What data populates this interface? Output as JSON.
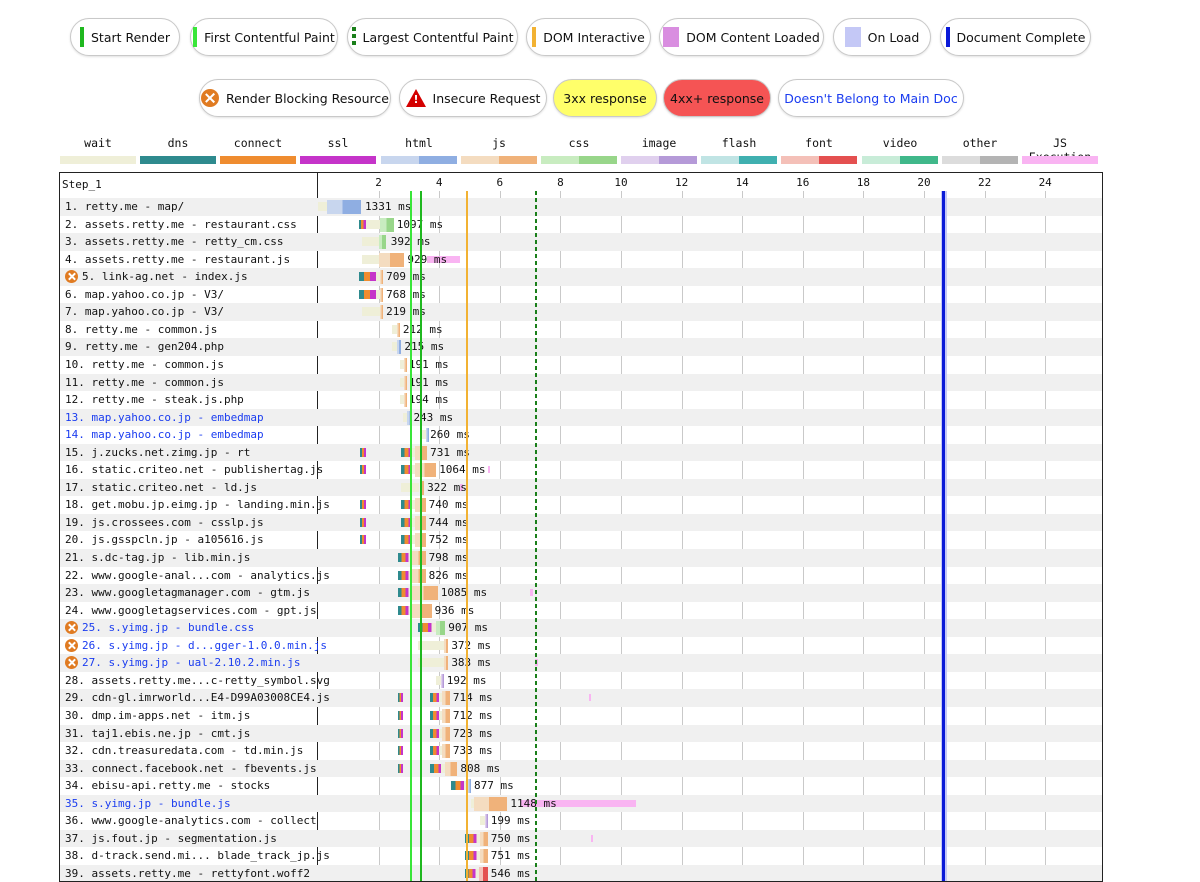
{
  "legend_events": [
    {
      "label": "Start Render",
      "style": "line",
      "color": "#1fb81f",
      "left": 70,
      "width": 110
    },
    {
      "label": "First Contentful Paint",
      "style": "line",
      "color": "#39e639",
      "left": 190,
      "width": 148
    },
    {
      "label": "Largest Contentful Paint",
      "style": "dash",
      "color": "#1a7f1a",
      "left": 347,
      "width": 171
    },
    {
      "label": "DOM Interactive",
      "style": "line",
      "color": "#f2b233",
      "left": 526,
      "width": 125
    },
    {
      "label": "DOM Content Loaded",
      "style": "box",
      "color": "#d98ee0",
      "left": 659,
      "width": 165
    },
    {
      "label": "On Load",
      "style": "box",
      "color": "#c4c8f6",
      "left": 833,
      "width": 98
    },
    {
      "label": "Document Complete",
      "style": "line",
      "color": "#0a1ad8",
      "left": 940,
      "width": 151
    }
  ],
  "legend_flags": [
    {
      "label": "Render Blocking Resource",
      "icon": "render-blocking-icon",
      "bg": "#ffffff",
      "color": "#111111",
      "left": 199,
      "width": 192
    },
    {
      "label": "Insecure Request",
      "icon": "warning-icon",
      "bg": "#ffffff",
      "color": "#111111",
      "left": 399,
      "width": 148
    },
    {
      "label": "3xx response",
      "icon": "",
      "bg": "#ffff6a",
      "color": "#111111",
      "left": 553,
      "width": 104
    },
    {
      "label": "4xx+ response",
      "icon": "",
      "bg": "#f55454",
      "color": "#111111",
      "left": 663,
      "width": 108
    },
    {
      "label": "Doesn't Belong to Main Doc",
      "icon": "",
      "bg": "#ffffff",
      "color": "#1a3cf0",
      "left": 778,
      "width": 186
    }
  ],
  "content_types": [
    {
      "label": "wait",
      "c1": "#efefd8",
      "c2": "#efefd8",
      "left": 60
    },
    {
      "label": "dns",
      "c1": "#2e8a8e",
      "c2": "#2e8a8e",
      "left": 140
    },
    {
      "label": "connect",
      "c1": "#ef8c2f",
      "c2": "#ef8c2f",
      "left": 220
    },
    {
      "label": "ssl",
      "c1": "#c534c9",
      "c2": "#c534c9",
      "left": 300
    },
    {
      "label": "html",
      "c1": "#c8d6ee",
      "c2": "#8faee2",
      "left": 381
    },
    {
      "label": "js",
      "c1": "#f4dcc0",
      "c2": "#f0b27a",
      "left": 461
    },
    {
      "label": "css",
      "c1": "#c8ecc0",
      "c2": "#98d68a",
      "left": 541
    },
    {
      "label": "image",
      "c1": "#e0d0ee",
      "c2": "#b59ad8",
      "left": 621
    },
    {
      "label": "flash",
      "c1": "#c0e4e4",
      "c2": "#40b0b0",
      "left": 701
    },
    {
      "label": "font",
      "c1": "#f4c0b8",
      "c2": "#e45050",
      "left": 781
    },
    {
      "label": "video",
      "c1": "#c8ecd8",
      "c2": "#40b88a",
      "left": 862
    },
    {
      "label": "other",
      "c1": "#dcdcdc",
      "c2": "#b4b4b4",
      "left": 942
    },
    {
      "label": "JS Execution",
      "c1": "#f9b4f2",
      "c2": "#f9b4f2",
      "left": 1022
    }
  ],
  "waterfall": {
    "step": "Step_1",
    "ticks": [
      "2",
      "4",
      "6",
      "8",
      "10",
      "12",
      "14",
      "16",
      "18",
      "20",
      "22",
      "24"
    ],
    "requests": [
      {
        "label": "1. retty.me - map/",
        "ms": "1331 ms",
        "blue": false,
        "rb": false,
        "type": "html",
        "wait": [
          0.0,
          0.3
        ],
        "dl": [
          0.3,
          1.43
        ],
        "msx": 1.55
      },
      {
        "label": "2. assets.retty.me - restaurant.css",
        "ms": "1097 ms",
        "blue": false,
        "rb": false,
        "type": "css",
        "dns": [
          1.35,
          1.6
        ],
        "wait": [
          1.6,
          2.05
        ],
        "dl": [
          2.05,
          2.5
        ],
        "msx": 2.6
      },
      {
        "label": "3. assets.retty.me - retty_cm.css",
        "ms": "392 ms",
        "blue": false,
        "rb": false,
        "type": "css",
        "wait": [
          1.45,
          2.0
        ],
        "dl": [
          2.0,
          2.25
        ],
        "msx": 2.4
      },
      {
        "label": "4. assets.retty.me - restaurant.js",
        "ms": "929 ms",
        "blue": false,
        "rb": false,
        "type": "js",
        "wait": [
          1.45,
          2.0
        ],
        "dl": [
          2.0,
          2.85
        ],
        "msx": 2.95,
        "jsx": [
          3.6,
          4.7
        ]
      },
      {
        "label": "5. link-ag.net - index.js",
        "ms": "709 ms",
        "blue": false,
        "rb": true,
        "type": "js",
        "dns": [
          1.35,
          1.9
        ],
        "wait": [
          1.9,
          2.05
        ],
        "dl": [
          2.05,
          2.15
        ],
        "msx": 2.25
      },
      {
        "label": "6. map.yahoo.co.jp - V3/",
        "ms": "768 ms",
        "blue": false,
        "rb": false,
        "type": "js",
        "dns": [
          1.35,
          1.9
        ],
        "wait": [
          1.9,
          2.05
        ],
        "dl": [
          2.05,
          2.15
        ],
        "msx": 2.25
      },
      {
        "label": "7. map.yahoo.co.jp - V3/",
        "ms": "219 ms",
        "blue": false,
        "rb": false,
        "type": "js",
        "wait": [
          1.45,
          2.05
        ],
        "dl": [
          2.05,
          2.15
        ],
        "msx": 2.25
      },
      {
        "label": "8. retty.me - common.js",
        "ms": "212 ms",
        "blue": false,
        "rb": false,
        "type": "js",
        "wait": [
          2.45,
          2.62
        ],
        "dl": [
          2.62,
          2.7
        ],
        "msx": 2.8
      },
      {
        "label": "9. retty.me - gen204.php",
        "ms": "215 ms",
        "blue": false,
        "rb": false,
        "type": "html",
        "wait": [
          2.45,
          2.62
        ],
        "dl": [
          2.62,
          2.75
        ],
        "msx": 2.85
      },
      {
        "label": "10. retty.me - common.js",
        "ms": "191 ms",
        "blue": false,
        "rb": false,
        "type": "js",
        "wait": [
          2.7,
          2.85
        ],
        "dl": [
          2.85,
          2.95
        ],
        "msx": 3.0
      },
      {
        "label": "11. retty.me - common.js",
        "ms": "191 ms",
        "blue": false,
        "rb": false,
        "type": "js",
        "wait": [
          2.7,
          2.85
        ],
        "dl": [
          2.85,
          2.95
        ],
        "msx": 3.0
      },
      {
        "label": "12. retty.me - steak.js.php",
        "ms": "194 ms",
        "blue": false,
        "rb": false,
        "type": "js",
        "wait": [
          2.7,
          2.85
        ],
        "dl": [
          2.85,
          2.95
        ],
        "msx": 3.0
      },
      {
        "label": "13. map.yahoo.co.jp - embedmap",
        "ms": "243 ms",
        "blue": true,
        "rb": false,
        "type": "html",
        "wait": [
          2.8,
          2.95
        ],
        "dl": [
          2.95,
          3.1
        ],
        "msx": 3.15
      },
      {
        "label": "14. map.yahoo.co.jp - embedmap",
        "ms": "260 ms",
        "blue": true,
        "rb": false,
        "type": "html",
        "wait": [
          3.35,
          3.55
        ],
        "dl": [
          3.55,
          3.65
        ],
        "msx": 3.7
      },
      {
        "label": "15. j.zucks.net.zimg.jp - rt",
        "ms": "731 ms",
        "blue": false,
        "rb": false,
        "type": "js",
        "dns": [
          1.4,
          1.6
        ],
        "conn": [
          2.75,
          3.2
        ],
        "dl": [
          3.2,
          3.6
        ],
        "msx": 3.7
      },
      {
        "label": "16. static.criteo.net - publishertag.js",
        "ms": "1064 ms",
        "blue": false,
        "rb": false,
        "type": "js",
        "dns": [
          1.4,
          1.6
        ],
        "conn": [
          2.75,
          3.2
        ],
        "dl": [
          3.2,
          3.9
        ],
        "msx": 4.0,
        "jsx": [
          5.6,
          5.65
        ]
      },
      {
        "label": "17. static.criteo.net - ld.js",
        "ms": "322 ms",
        "blue": false,
        "rb": false,
        "type": "js",
        "wait": [
          2.75,
          3.35
        ],
        "dl": [
          3.35,
          3.5
        ],
        "msx": 3.6,
        "jsx": [
          4.7,
          4.8
        ]
      },
      {
        "label": "18. get.mobu.jp.eimg.jp - landing.min.js",
        "ms": "740 ms",
        "blue": false,
        "rb": false,
        "type": "js",
        "dns": [
          1.4,
          1.6
        ],
        "conn": [
          2.75,
          3.2
        ],
        "dl": [
          3.2,
          3.55
        ],
        "msx": 3.65
      },
      {
        "label": "19. js.crossees.com - csslp.js",
        "ms": "744 ms",
        "blue": false,
        "rb": false,
        "type": "js",
        "dns": [
          1.4,
          1.6
        ],
        "conn": [
          2.75,
          3.2
        ],
        "dl": [
          3.2,
          3.55
        ],
        "msx": 3.65
      },
      {
        "label": "20. js.gsspcln.jp - a105616.js",
        "ms": "752 ms",
        "blue": false,
        "rb": false,
        "type": "js",
        "dns": [
          1.4,
          1.6
        ],
        "conn": [
          2.75,
          3.2
        ],
        "dl": [
          3.2,
          3.55
        ],
        "msx": 3.65
      },
      {
        "label": "21. s.dc-tag.jp - lib.min.js",
        "ms": "798 ms",
        "blue": false,
        "rb": false,
        "type": "js",
        "conn": [
          2.65,
          3.1
        ],
        "dl": [
          3.1,
          3.55
        ],
        "msx": 3.65
      },
      {
        "label": "22. www.google-anal...com - analytics.js",
        "ms": "826 ms",
        "blue": false,
        "rb": false,
        "type": "js",
        "conn": [
          2.65,
          3.1
        ],
        "dl": [
          3.1,
          3.55
        ],
        "msx": 3.65
      },
      {
        "label": "23. www.googletagmanager.com - gtm.js",
        "ms": "1085 ms",
        "blue": false,
        "rb": false,
        "type": "js",
        "conn": [
          2.65,
          3.1
        ],
        "dl": [
          3.1,
          3.95
        ],
        "msx": 4.05,
        "jsx": [
          7.0,
          7.1
        ]
      },
      {
        "label": "24. www.googletagservices.com - gpt.js",
        "ms": "936 ms",
        "blue": false,
        "rb": false,
        "type": "js",
        "conn": [
          2.65,
          3.1
        ],
        "dl": [
          3.1,
          3.75
        ],
        "msx": 3.85
      },
      {
        "label": "25. s.yimg.jp - bundle.css",
        "ms": "907 ms",
        "blue": true,
        "rb": true,
        "type": "css",
        "conn": [
          3.3,
          3.9
        ],
        "dl": [
          3.9,
          4.2
        ],
        "msx": 4.3
      },
      {
        "label": "26. s.yimg.jp - d...gger-1.0.0.min.js",
        "ms": "372 ms",
        "blue": true,
        "rb": true,
        "type": "js",
        "wait": [
          3.3,
          4.15
        ],
        "dl": [
          4.15,
          4.3
        ],
        "msx": 4.4
      },
      {
        "label": "27. s.yimg.jp - ual-2.10.2.min.js",
        "ms": "383 ms",
        "blue": true,
        "rb": true,
        "type": "js",
        "wait": [
          3.3,
          4.15
        ],
        "dl": [
          4.15,
          4.3
        ],
        "msx": 4.4,
        "jsx": [
          7.15,
          7.25
        ]
      },
      {
        "label": "28. assets.retty.me...c-retty_symbol.svg",
        "ms": "192 ms",
        "blue": false,
        "rb": false,
        "type": "image",
        "wait": [
          3.9,
          4.05
        ],
        "dl": [
          4.05,
          4.15
        ],
        "msx": 4.25
      },
      {
        "label": "29. cdn-gl.imrworld...E4-D99A03008CE4.js",
        "ms": "714 ms",
        "blue": false,
        "rb": false,
        "type": "js",
        "dns": [
          2.65,
          2.8
        ],
        "conn": [
          3.7,
          4.1
        ],
        "dl": [
          4.1,
          4.35
        ],
        "msx": 4.45,
        "jsx": [
          8.95,
          9.0
        ]
      },
      {
        "label": "30. dmp.im-apps.net - itm.js",
        "ms": "712 ms",
        "blue": false,
        "rb": false,
        "type": "js",
        "dns": [
          2.65,
          2.8
        ],
        "conn": [
          3.7,
          4.1
        ],
        "dl": [
          4.1,
          4.35
        ],
        "msx": 4.45
      },
      {
        "label": "31. taj1.ebis.ne.jp - cmt.js",
        "ms": "723 ms",
        "blue": false,
        "rb": false,
        "type": "js",
        "dns": [
          2.65,
          2.8
        ],
        "conn": [
          3.7,
          4.1
        ],
        "dl": [
          4.1,
          4.35
        ],
        "msx": 4.45
      },
      {
        "label": "32. cdn.treasuredata.com - td.min.js",
        "ms": "733 ms",
        "blue": false,
        "rb": false,
        "type": "js",
        "dns": [
          2.65,
          2.8
        ],
        "conn": [
          3.7,
          4.1
        ],
        "dl": [
          4.1,
          4.35
        ],
        "msx": 4.45
      },
      {
        "label": "33. connect.facebook.net - fbevents.js",
        "ms": "808 ms",
        "blue": false,
        "rb": false,
        "type": "js",
        "dns": [
          2.65,
          2.8
        ],
        "conn": [
          3.7,
          4.2
        ],
        "dl": [
          4.2,
          4.6
        ],
        "msx": 4.7
      },
      {
        "label": "34. ebisu-api.retty.me - stocks",
        "ms": "877 ms",
        "blue": false,
        "rb": false,
        "type": "html",
        "conn": [
          4.4,
          4.95
        ],
        "dl": [
          4.95,
          5.05
        ],
        "msx": 5.15
      },
      {
        "label": "35. s.yimg.jp - bundle.js",
        "ms": "1148 ms",
        "blue": true,
        "rb": false,
        "type": "js",
        "wait": [
          5.05,
          5.15
        ],
        "dl": [
          5.15,
          6.25
        ],
        "msx": 6.35,
        "jsx": [
          6.7,
          10.5
        ]
      },
      {
        "label": "36. www.google-analytics.com - collect",
        "ms": "199 ms",
        "blue": false,
        "rb": false,
        "type": "image",
        "wait": [
          5.35,
          5.5
        ],
        "dl": [
          5.5,
          5.6
        ],
        "msx": 5.7
      },
      {
        "label": "37. js.fout.jp - segmentation.js",
        "ms": "750 ms",
        "blue": false,
        "rb": false,
        "type": "js",
        "conn": [
          4.85,
          5.35
        ],
        "dl": [
          5.35,
          5.6
        ],
        "msx": 5.7,
        "jsx": [
          9.0,
          9.05
        ]
      },
      {
        "label": "38. d-track.send.mi... blade_track_jp.js",
        "ms": "751 ms",
        "blue": false,
        "rb": false,
        "type": "js",
        "conn": [
          4.85,
          5.35
        ],
        "dl": [
          5.35,
          5.6
        ],
        "msx": 5.7
      },
      {
        "label": "39. assets.retty.me - rettyfont.woff2",
        "ms": "546 ms",
        "blue": false,
        "rb": false,
        "type": "font",
        "conn": [
          4.85,
          5.3
        ],
        "dl": [
          5.3,
          5.6
        ],
        "msx": 5.7
      }
    ]
  }
}
